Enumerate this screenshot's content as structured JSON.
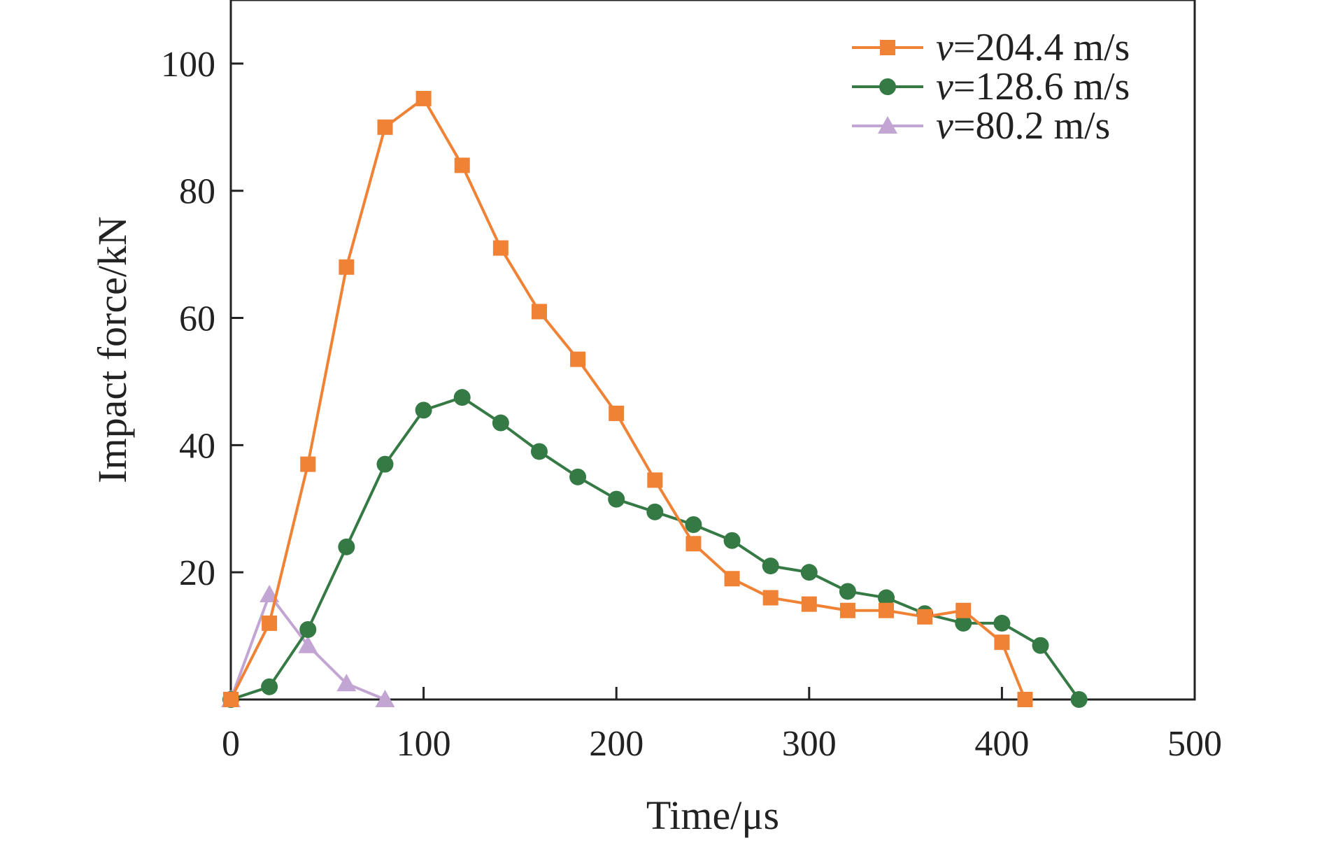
{
  "chart_data": {
    "type": "line",
    "title": "",
    "xlabel": "Time/μs",
    "ylabel": "Impact force/kN",
    "xlim": [
      0,
      500
    ],
    "ylim": [
      0,
      110
    ],
    "xticks": [
      0,
      100,
      200,
      300,
      400,
      500
    ],
    "yticks": [
      20,
      40,
      60,
      80,
      100
    ],
    "grid": false,
    "legend_position": "top-right",
    "series": [
      {
        "name": "v=204.4 m/s",
        "legend_prefix": "v",
        "legend_suffix": "=204.4 m/s",
        "color": "#F08236",
        "marker": "square",
        "x": [
          0,
          20,
          40,
          60,
          80,
          100,
          120,
          140,
          160,
          180,
          200,
          220,
          240,
          260,
          280,
          300,
          320,
          340,
          360,
          380,
          400,
          412
        ],
        "y": [
          0,
          12,
          37,
          68,
          90,
          94.5,
          84,
          71,
          61,
          53.5,
          45,
          34.5,
          24.5,
          19,
          16,
          15,
          14,
          14,
          13,
          14,
          9,
          0
        ]
      },
      {
        "name": "v=128.6 m/s",
        "legend_prefix": "v",
        "legend_suffix": "=128.6 m/s",
        "color": "#357A45",
        "marker": "circle",
        "x": [
          0,
          20,
          40,
          60,
          80,
          100,
          120,
          140,
          160,
          180,
          200,
          220,
          240,
          260,
          280,
          300,
          320,
          340,
          360,
          380,
          400,
          420,
          440
        ],
        "y": [
          0,
          2,
          11,
          24,
          37,
          45.5,
          47.5,
          43.5,
          39,
          35,
          31.5,
          29.5,
          27.5,
          25,
          21,
          20,
          17,
          16,
          13.5,
          12,
          12,
          8.5,
          0
        ]
      },
      {
        "name": "v=80.2 m/s",
        "legend_prefix": "v",
        "legend_suffix": "=80.2 m/s",
        "color": "#C3A5D4",
        "marker": "triangle",
        "x": [
          0,
          20,
          40,
          60,
          80
        ],
        "y": [
          0,
          16.5,
          8.5,
          2.5,
          0
        ]
      }
    ]
  }
}
